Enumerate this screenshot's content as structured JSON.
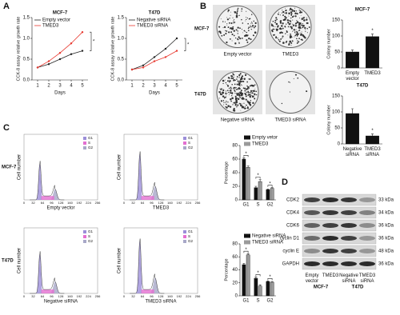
{
  "panel_letters": [
    "A",
    "B",
    "C",
    "D"
  ],
  "chart_data": [
    {
      "type": "line",
      "title": "MCF-7",
      "x_label": "Days",
      "y_label": "CCK-8 assay relative growth rate",
      "annotation": "*",
      "x": [
        1,
        2,
        3,
        4,
        5
      ],
      "xlim": [
        0.5,
        5.5
      ],
      "xticks": [
        1,
        2,
        3,
        4,
        5
      ],
      "ylim": [
        0,
        1.5
      ],
      "yticks": [
        {
          "value": 0,
          "label": "0.0"
        },
        {
          "value": 0.5,
          "label": "0.5"
        },
        {
          "value": 1,
          "label": "1.0"
        },
        {
          "value": 1.5,
          "label": "1.5"
        }
      ],
      "series": [
        {
          "name": "Empty vector",
          "color": "#222222",
          "values": [
            0.3,
            0.38,
            0.5,
            0.62,
            0.7
          ]
        },
        {
          "name": "TMED3",
          "color": "#e8382f",
          "values": [
            0.3,
            0.45,
            0.65,
            0.88,
            1.15
          ]
        }
      ]
    },
    {
      "type": "line",
      "title": "T47D",
      "x_label": "Days",
      "y_label": "CCK-8 assay relative growth rate",
      "annotation": "*",
      "x": [
        1,
        2,
        3,
        4,
        5
      ],
      "xlim": [
        0.5,
        5.5
      ],
      "xticks": [
        1,
        2,
        3,
        4,
        5
      ],
      "ylim": [
        0,
        1.5
      ],
      "yticks": [
        {
          "value": 0,
          "label": "0.0"
        },
        {
          "value": 0.5,
          "label": "0.5"
        },
        {
          "value": 1,
          "label": "1.0"
        },
        {
          "value": 1.5,
          "label": "1.5"
        }
      ],
      "series": [
        {
          "name": "Negative siRNA",
          "color": "#222222",
          "values": [
            0.25,
            0.35,
            0.55,
            0.75,
            1.0
          ]
        },
        {
          "name": "TMED3 siRNA",
          "color": "#e8382f",
          "values": [
            0.25,
            0.3,
            0.45,
            0.55,
            0.7
          ]
        }
      ]
    },
    {
      "type": "bar",
      "title": "MCF-7",
      "y_label": "Colony number",
      "annotation": "*",
      "categories": [
        "Empty vector",
        "TMED3"
      ],
      "values": [
        50,
        98
      ],
      "errors": [
        6,
        8
      ],
      "color": "#111111",
      "ylim": [
        0,
        150
      ],
      "yticks": [
        0,
        50,
        100,
        150
      ]
    },
    {
      "type": "bar",
      "title": "T47D",
      "y_label": "Colony number",
      "annotation": "*",
      "categories": [
        "Negative siRNA",
        "TMED3 siRNA"
      ],
      "values": [
        95,
        25
      ],
      "errors": [
        15,
        6
      ],
      "color": "#111111",
      "ylim": [
        0,
        150
      ],
      "yticks": [
        0,
        50,
        100,
        150
      ]
    },
    {
      "type": "bar",
      "y_label": "Percentage",
      "annotation": "*",
      "categories": [
        "G1",
        "S",
        "G2"
      ],
      "ylim": [
        0,
        80
      ],
      "yticks": [
        0,
        20,
        40,
        60,
        80
      ],
      "series": [
        {
          "name": "Empty vetor",
          "color": "#111111",
          "values": [
            60,
            18,
            15
          ],
          "errors": [
            2,
            2,
            1
          ]
        },
        {
          "name": "TMED3",
          "color": "#9a9a9a",
          "values": [
            48,
            27,
            17
          ],
          "errors": [
            2,
            3,
            1
          ]
        }
      ]
    },
    {
      "type": "bar",
      "y_label": "Percentage",
      "annotation": "*",
      "categories": [
        "G1",
        "S",
        "G2"
      ],
      "ylim": [
        0,
        80
      ],
      "yticks": [
        0,
        20,
        40,
        60,
        80
      ],
      "series": [
        {
          "name": "Negative siRNA",
          "color": "#111111",
          "values": [
            48,
            27,
            22
          ],
          "errors": [
            2,
            2,
            1
          ]
        },
        {
          "name": "TMED3 siRNA",
          "color": "#9a9a9a",
          "values": [
            63,
            15,
            21
          ],
          "errors": [
            2,
            2,
            1
          ]
        }
      ]
    }
  ],
  "colony": {
    "rows": [
      {
        "label": "MCF-7",
        "captions": [
          "Empty vector",
          "TMED3"
        ]
      },
      {
        "label": "T47D",
        "captions": [
          "Negative siRNA",
          "TMED3 siRNA"
        ]
      }
    ]
  },
  "flow": {
    "y_label": "Cell number",
    "xticks": [
      0,
      32,
      64,
      96,
      128,
      160,
      192,
      224,
      256
    ],
    "legend": [
      "G1",
      "S",
      "G2"
    ],
    "panels": [
      {
        "row_label": "MCF-7",
        "x_label": "Empty vector"
      },
      {
        "x_label": "TMED3"
      },
      {
        "row_label": "T47D",
        "x_label": "Negative siRNA"
      },
      {
        "x_label": "TMED3 siRNA"
      }
    ]
  },
  "blot": {
    "proteins": [
      "CDK2",
      "CDK4",
      "CDK6",
      "cyclin D1",
      "cyclin E",
      "GAPDH"
    ],
    "sizes": [
      "33 kDa",
      "34 kDa",
      "36 kDa",
      "36 kDa",
      "48 kDa",
      "36 kDa"
    ],
    "lanes": [
      "Empty vector",
      "TMED3",
      "Negative siRNA",
      "TMED3 siRNA"
    ],
    "groups": [
      "MCF-7",
      "T47D"
    ]
  }
}
